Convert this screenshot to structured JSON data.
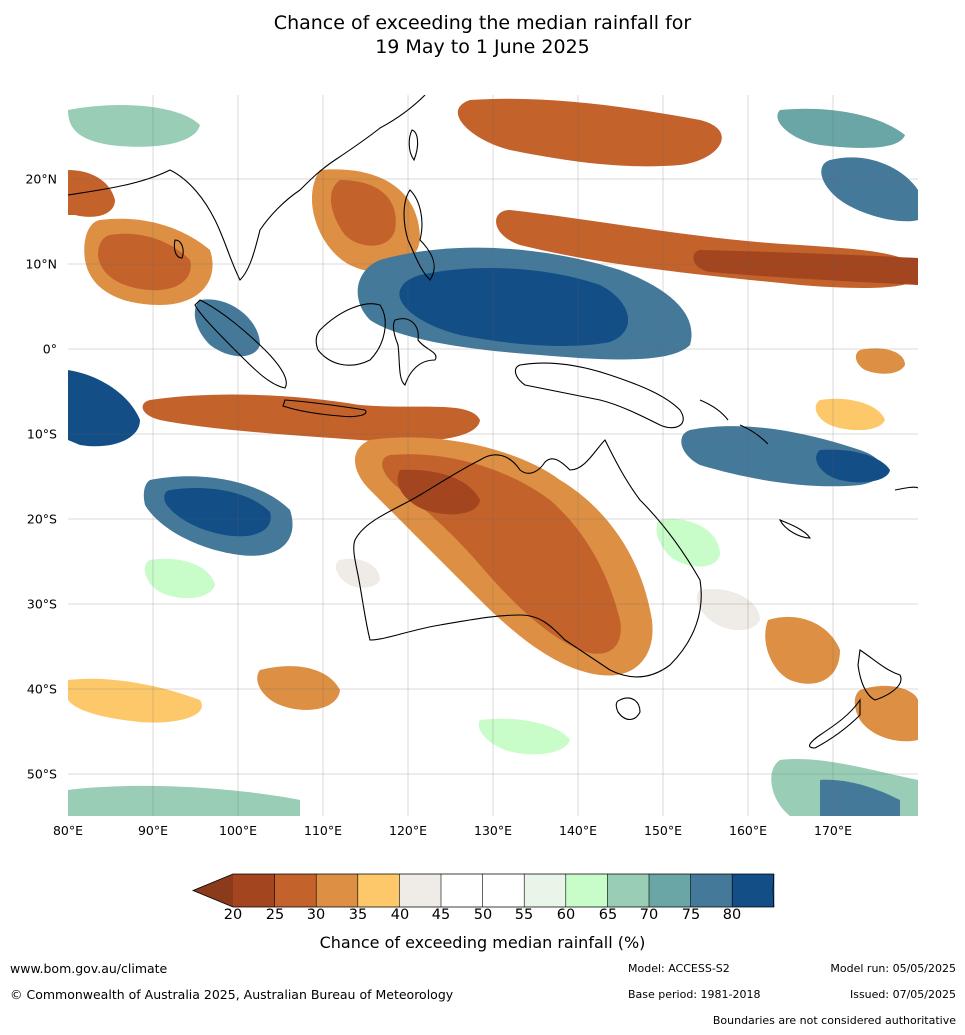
{
  "title": {
    "line1": "Chance of exceeding the median rainfall for",
    "line2": "19 May to 1 June 2025"
  },
  "map": {
    "lon_labels": [
      "80°E",
      "90°E",
      "100°E",
      "110°E",
      "120°E",
      "130°E",
      "140°E",
      "150°E",
      "160°E",
      "170°E"
    ],
    "lat_labels": [
      "20°N",
      "10°N",
      "0°",
      "10°S",
      "20°S",
      "30°S",
      "40°S",
      "50°S"
    ],
    "extent": {
      "lon": [
        80,
        180
      ],
      "lat": [
        -55,
        30
      ]
    }
  },
  "colorbar": {
    "title": "Chance of exceeding median rainfall (%)",
    "labels": [
      "20",
      "25",
      "30",
      "35",
      "40",
      "45",
      "50",
      "55",
      "60",
      "65",
      "70",
      "75",
      "80"
    ],
    "colors": [
      "#a3451f",
      "#c4622c",
      "#dd8f43",
      "#fdc86a",
      "#efebe6",
      "#ffffff",
      "#ffffff",
      "#e8f5e8",
      "#c8fcc8",
      "#99cdb5",
      "#6aa6a6",
      "#45799a",
      "#134e87"
    ],
    "under_color": "#8c3a1c",
    "over_color": "#0e4a84"
  },
  "footer": {
    "website": "www.bom.gov.au/climate",
    "copyright": "© Commonwealth of Australia 2025, Australian Bureau of Meteorology",
    "model": "Model: ACCESS-S2",
    "base_period": "Base period: 1981-2018",
    "model_run": "Model run: 05/05/2025",
    "issued": "Issued: 07/05/2025",
    "disclaimer": "Boundaries are not considered authoritative"
  }
}
